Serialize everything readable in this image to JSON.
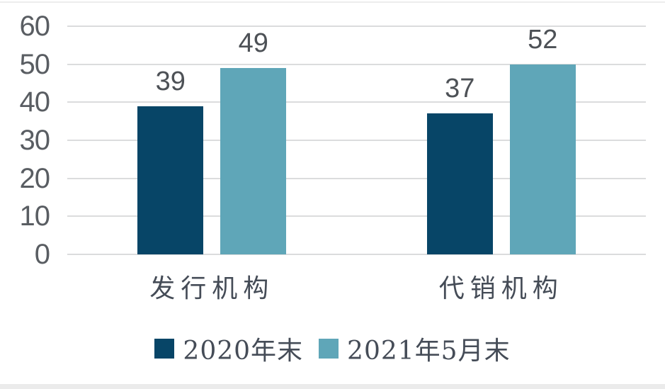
{
  "chart_data": {
    "type": "bar",
    "title": "",
    "xlabel": "",
    "ylabel": "",
    "categories": [
      "发行机构",
      "代销机构"
    ],
    "series": [
      {
        "name": "2020年末",
        "color": "#074567",
        "values": [
          39,
          37
        ]
      },
      {
        "name": "2021年5月末",
        "color": "#5fa6b8",
        "values": [
          49,
          52
        ]
      }
    ],
    "ylim": [
      0,
      60
    ],
    "yticks": [
      0,
      10,
      20,
      30,
      40,
      50,
      60
    ],
    "grid": true,
    "value_labels": true,
    "legend_position": "bottom"
  },
  "colors": {
    "series_dark": "#074567",
    "series_light": "#5fa6b8",
    "gridline": "#dbdcdd",
    "tick_text": "#595d62",
    "value_text": "#4d5156",
    "label_text": "#454c57",
    "background": "#ffffff"
  }
}
